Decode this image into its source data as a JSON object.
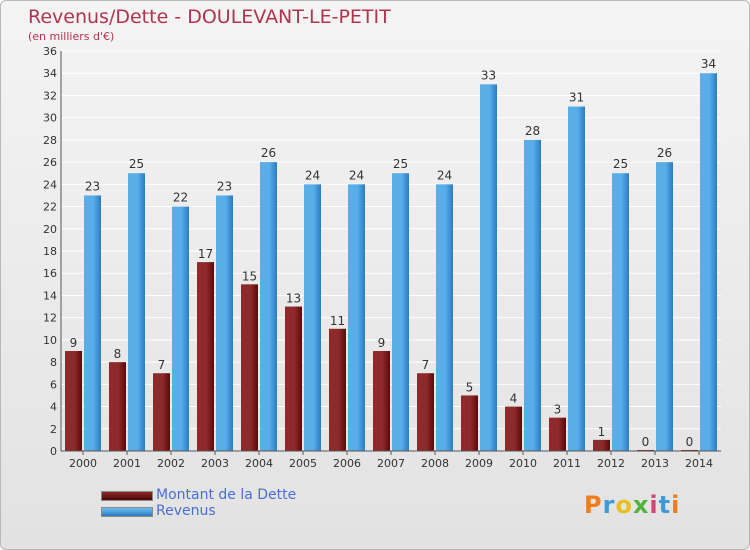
{
  "title": "Revenus/Dette - DOULEVANT-LE-PETIT",
  "subtitle": "(en milliers d'€)",
  "colors": {
    "dette_dark": "#5c0a0a",
    "dette_light": "#8e2a2a",
    "revenus_dark": "#2a7cc0",
    "revenus_light": "#5aaee8",
    "title": "#b2344c",
    "legend_text": "#4a6fd4"
  },
  "chart_data": {
    "type": "bar",
    "categories": [
      "2000",
      "2001",
      "2002",
      "2003",
      "2004",
      "2005",
      "2006",
      "2007",
      "2008",
      "2009",
      "2010",
      "2011",
      "2012",
      "2013",
      "2014"
    ],
    "series": [
      {
        "name": "Montant de la Dette",
        "values": [
          9,
          8,
          7,
          17,
          15,
          13,
          11,
          9,
          7,
          5,
          4,
          3,
          1,
          0,
          0
        ]
      },
      {
        "name": "Revenus",
        "values": [
          23,
          25,
          22,
          23,
          26,
          24,
          24,
          25,
          24,
          33,
          28,
          31,
          25,
          26,
          34
        ]
      }
    ],
    "yticks": [
      "0",
      "2",
      "4",
      "6",
      "8",
      "10",
      "12",
      "14",
      "16",
      "18",
      "20",
      "22",
      "24",
      "26",
      "28",
      "30",
      "32",
      "34",
      "36"
    ],
    "ylim": [
      0,
      36
    ],
    "grid": true,
    "legend": "bottom-left"
  },
  "legend": {
    "items": [
      {
        "label": "Montant de la Dette"
      },
      {
        "label": "Revenus"
      }
    ]
  },
  "logo": {
    "letters": [
      {
        "ch": "P",
        "color": "#f07c1c"
      },
      {
        "ch": "r",
        "color": "#3f9ad8"
      },
      {
        "ch": "o",
        "color": "#e8c020"
      },
      {
        "ch": "x",
        "color": "#4fb33c"
      },
      {
        "ch": "i",
        "color": "#d04878"
      },
      {
        "ch": "t",
        "color": "#3f9ad8"
      },
      {
        "ch": "i",
        "color": "#f07c1c"
      }
    ]
  }
}
